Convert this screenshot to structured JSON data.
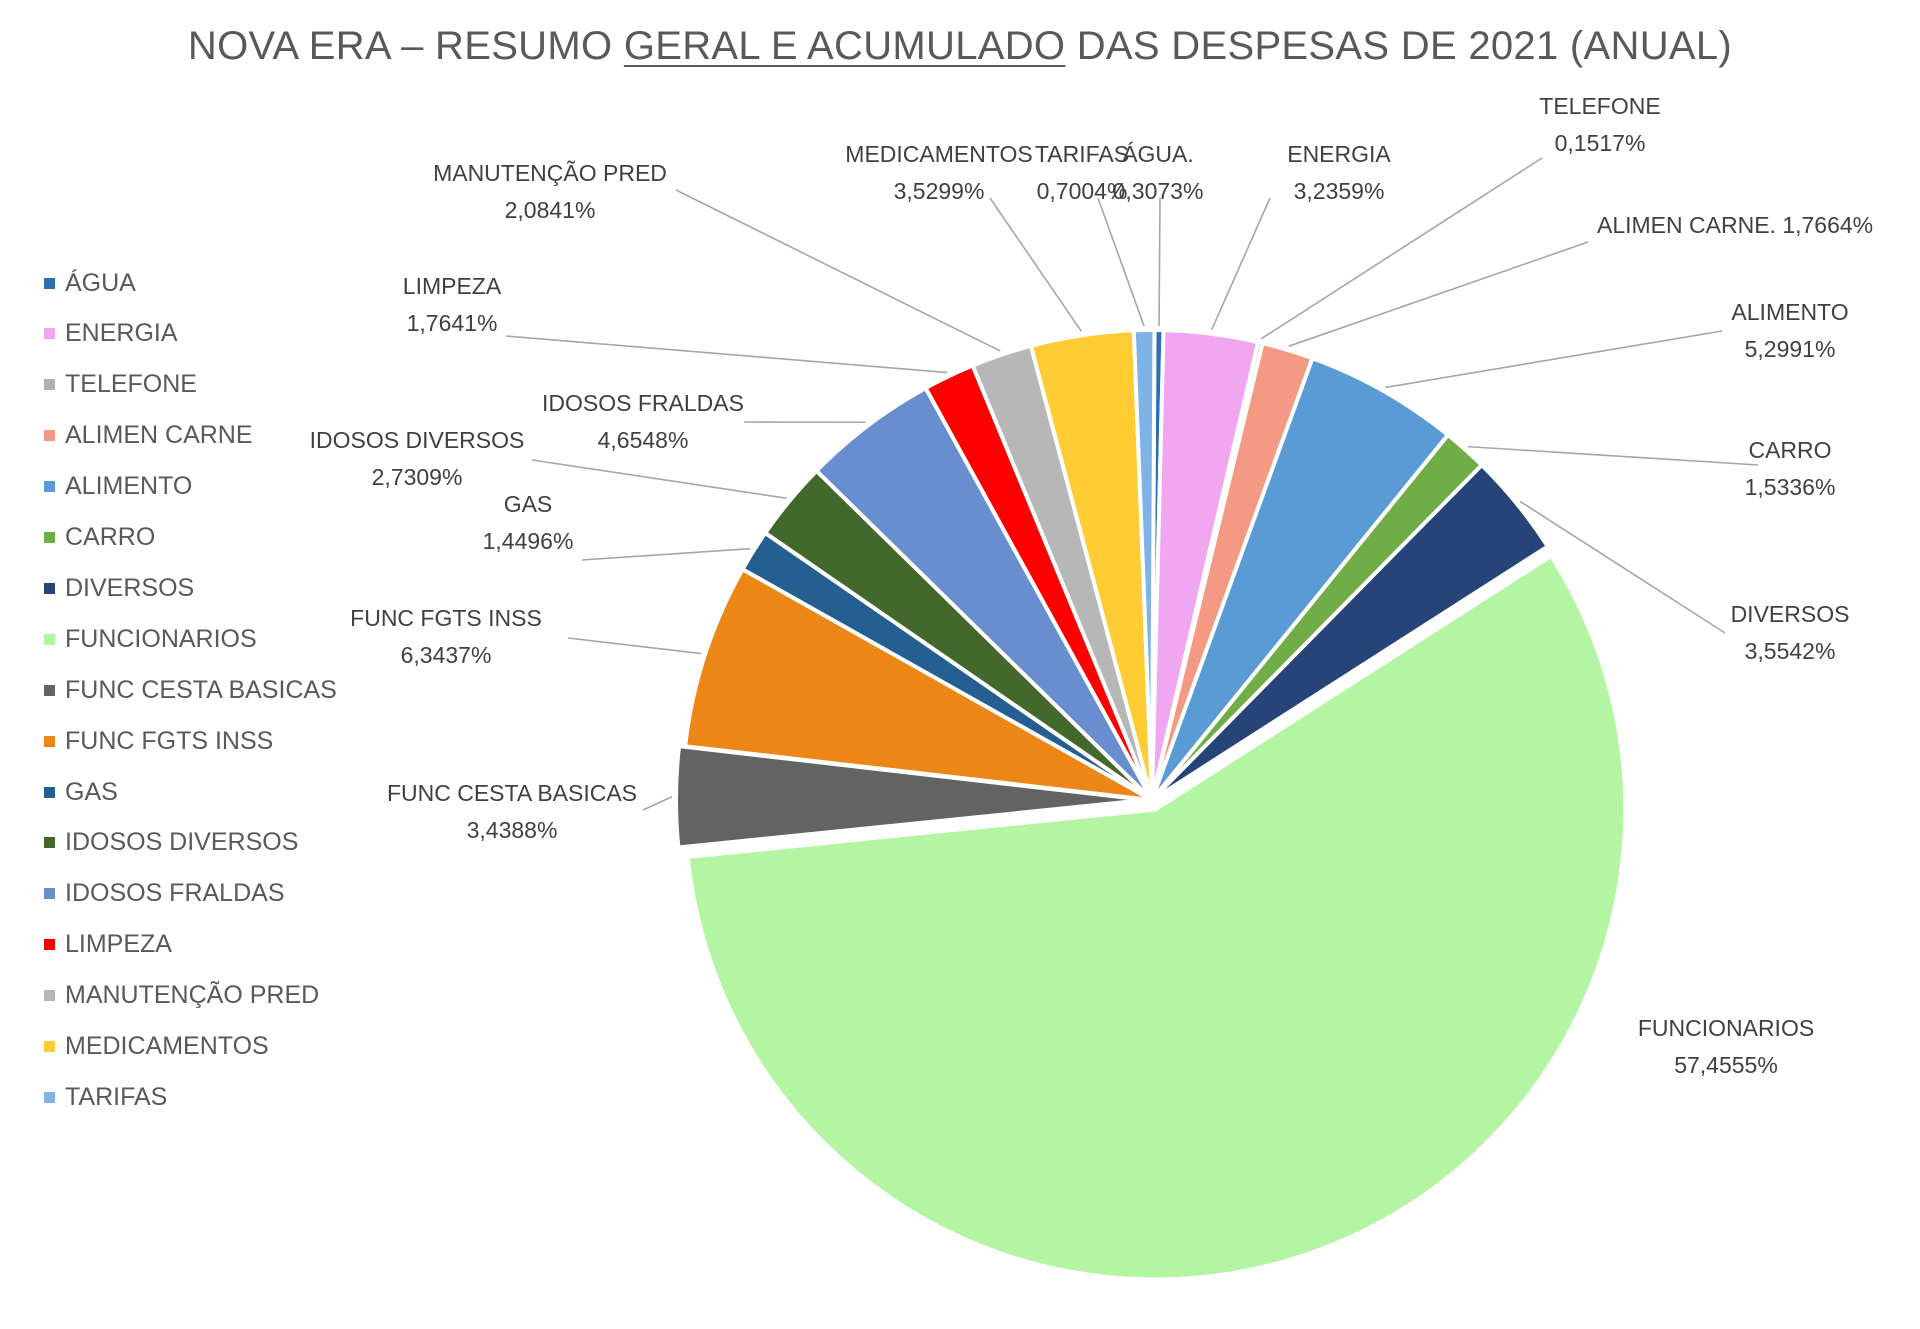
{
  "title": {
    "part1": "NOVA ERA – RESUMO ",
    "part2": "GERAL E ACUMULADO",
    "part3": " DAS DESPESAS DE 2021  (ANUAL)"
  },
  "legend_items": [
    {
      "label": "ÁGUA",
      "color": "#2e6fb0"
    },
    {
      "label": "ENERGIA",
      "color": "#f0a6f0"
    },
    {
      "label": "TELEFONE",
      "color": "#b0b0b0"
    },
    {
      "label": "ALIMEN CARNE",
      "color": "#f49a84"
    },
    {
      "label": "ALIMENTO",
      "color": "#5b9bd5"
    },
    {
      "label": "CARRO",
      "color": "#70ad47"
    },
    {
      "label": "DIVERSOS",
      "color": "#264478"
    },
    {
      "label": "FUNCIONARIOS",
      "color": "#b3f5a2"
    },
    {
      "label": "FUNC CESTA BASICAS",
      "color": "#636363"
    },
    {
      "label": "FUNC FGTS INSS",
      "color": "#ec8616"
    },
    {
      "label": "GAS",
      "color": "#255e91"
    },
    {
      "label": "IDOSOS DIVERSOS",
      "color": "#43682b"
    },
    {
      "label": "IDOSOS FRALDAS",
      "color": "#698ed0"
    },
    {
      "label": "LIMPEZA",
      "color": "#ff0000"
    },
    {
      "label": "MANUTENÇÃO PRED",
      "color": "#b7b7b7"
    },
    {
      "label": "MEDICAMENTOS",
      "color": "#ffcc33"
    },
    {
      "label": "TARIFAS",
      "color": "#7fb2e5"
    }
  ],
  "chart_data": {
    "type": "pie",
    "title": "NOVA ERA – RESUMO GERAL E ACUMULADO DAS DESPESAS DE 2021  (ANUAL)",
    "legend_position": "left",
    "slices": [
      {
        "name": "ÁGUA",
        "label_text": "ÁGUA.",
        "value": 0.3073,
        "value_text": "0,3073%",
        "color": "#2e6fb0"
      },
      {
        "name": "ENERGIA",
        "label_text": "ENERGIA",
        "value": 3.2359,
        "value_text": "3,2359%",
        "color": "#f0a6f0"
      },
      {
        "name": "TELEFONE",
        "label_text": "TELEFONE",
        "value": 0.1517,
        "value_text": "0,1517%",
        "color": "#b0b0b0"
      },
      {
        "name": "ALIMEN CARNE",
        "label_text": "ALIMEN CARNE.",
        "value": 1.7664,
        "value_text": "1,7664%",
        "color": "#f49a84"
      },
      {
        "name": "ALIMENTO",
        "label_text": "ALIMENTO",
        "value": 5.2991,
        "value_text": "5,2991%",
        "color": "#5b9bd5"
      },
      {
        "name": "CARRO",
        "label_text": "CARRO",
        "value": 1.5336,
        "value_text": "1,5336%",
        "color": "#70ad47"
      },
      {
        "name": "DIVERSOS",
        "label_text": "DIVERSOS",
        "value": 3.5542,
        "value_text": "3,5542%",
        "color": "#264478"
      },
      {
        "name": "FUNCIONARIOS",
        "label_text": "FUNCIONARIOS",
        "value": 57.4555,
        "value_text": "57,4555%",
        "color": "#b3f5a2"
      },
      {
        "name": "FUNC CESTA BASICAS",
        "label_text": "FUNC CESTA BASICAS",
        "value": 3.4388,
        "value_text": "3,4388%",
        "color": "#636363"
      },
      {
        "name": "FUNC FGTS INSS",
        "label_text": "FUNC FGTS INSS",
        "value": 6.3437,
        "value_text": "6,3437%",
        "color": "#ec8616"
      },
      {
        "name": "GAS",
        "label_text": "GAS",
        "value": 1.4496,
        "value_text": "1,4496%",
        "color": "#255e91"
      },
      {
        "name": "IDOSOS DIVERSOS",
        "label_text": "IDOSOS DIVERSOS",
        "value": 2.7309,
        "value_text": "2,7309%",
        "color": "#43682b"
      },
      {
        "name": "IDOSOS FRALDAS",
        "label_text": "IDOSOS FRALDAS",
        "value": 4.6548,
        "value_text": "4,6548%",
        "color": "#698ed0"
      },
      {
        "name": "LIMPEZA",
        "label_text": "LIMPEZA",
        "value": 1.7641,
        "value_text": "1,7641%",
        "color": "#ff0000"
      },
      {
        "name": "MANUTENÇÃO PRED",
        "label_text": "MANUTENÇÃO PRED",
        "value": 2.0841,
        "value_text": "2,0841%",
        "color": "#b7b7b7"
      },
      {
        "name": "MEDICAMENTOS",
        "label_text": "MEDICAMENTOS",
        "value": 3.5299,
        "value_text": "3,5299%",
        "color": "#ffcc33"
      },
      {
        "name": "TARIFAS",
        "label_text": "TARIFAS",
        "value": 0.7004,
        "value_text": "0,7004%",
        "color": "#7fb2e5"
      }
    ]
  }
}
